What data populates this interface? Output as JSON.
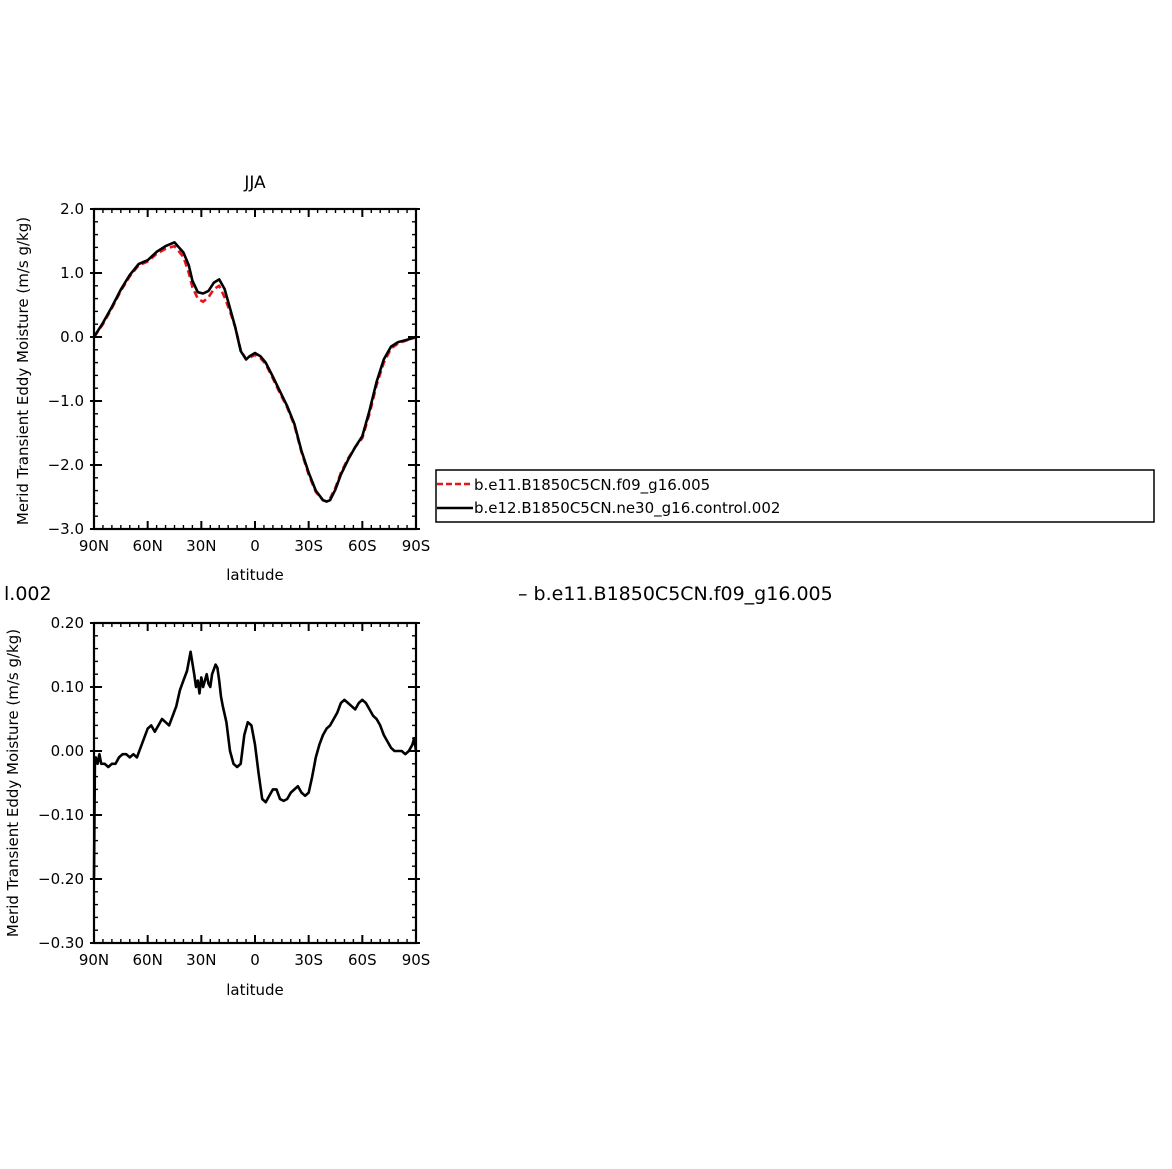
{
  "figure": {
    "top_panel_title": "JJA",
    "bottom_panel_title_left": "l.002",
    "bottom_panel_title_right": "– b.e11.B1850C5CN.f09_g16.005",
    "colors": {
      "case1": "#e8141c",
      "case2": "#000000",
      "frame": "#000000"
    }
  },
  "chart_data": [
    {
      "type": "line",
      "title": "JJA",
      "xlabel": "latitude",
      "ylabel": "Merid Transient Eddy Moisture (m/s g/kg)",
      "xlim": [
        90,
        -90
      ],
      "ylim": [
        -3.0,
        2.0
      ],
      "x_ticks": [
        90,
        60,
        30,
        0,
        -30,
        -60,
        -90
      ],
      "x_tick_labels": [
        "90N",
        "60N",
        "30N",
        "0",
        "30S",
        "60S",
        "90S"
      ],
      "y_ticks": [
        2.0,
        1.0,
        0.0,
        -1.0,
        -2.0,
        -3.0
      ],
      "y_tick_labels": [
        "2.0",
        "1.0",
        "0.0",
        "−1.0",
        "−2.0",
        "−3.0"
      ],
      "grid": false,
      "legend_position": "right",
      "series": [
        {
          "name": "b.e11.B1850C5CN.f09_g16.005",
          "color": "#e8141c",
          "dash": "dashed",
          "x": [
            90,
            85,
            80,
            75,
            70,
            65,
            60,
            55,
            50,
            45,
            40,
            37,
            35,
            32,
            29,
            26,
            23,
            20,
            17,
            14,
            11,
            8,
            5,
            3,
            0,
            -3,
            -6,
            -10,
            -14,
            -18,
            -22,
            -26,
            -30,
            -34,
            -38,
            -40,
            -42,
            -45,
            -48,
            -52,
            -56,
            -60,
            -64,
            -68,
            -72,
            -76,
            -80,
            -84,
            -88,
            -90
          ],
          "y": [
            0.0,
            0.2,
            0.45,
            0.72,
            0.95,
            1.12,
            1.18,
            1.3,
            1.38,
            1.42,
            1.25,
            1.0,
            0.78,
            0.6,
            0.55,
            0.62,
            0.75,
            0.8,
            0.62,
            0.4,
            0.15,
            -0.2,
            -0.35,
            -0.32,
            -0.28,
            -0.33,
            -0.42,
            -0.65,
            -0.88,
            -1.1,
            -1.38,
            -1.8,
            -2.15,
            -2.42,
            -2.55,
            -2.57,
            -2.52,
            -2.35,
            -2.12,
            -1.9,
            -1.72,
            -1.58,
            -1.2,
            -0.75,
            -0.4,
            -0.18,
            -0.1,
            -0.06,
            -0.02,
            0.0
          ]
        },
        {
          "name": "b.e12.B1850C5CN.ne30_g16.control.002",
          "color": "#000000",
          "dash": "solid",
          "x": [
            90,
            85,
            80,
            75,
            70,
            65,
            60,
            55,
            50,
            45,
            40,
            37,
            35,
            32,
            29,
            26,
            23,
            20,
            17,
            14,
            11,
            8,
            5,
            3,
            0,
            -3,
            -6,
            -10,
            -14,
            -18,
            -22,
            -26,
            -30,
            -34,
            -38,
            -40,
            -42,
            -45,
            -48,
            -52,
            -56,
            -60,
            -64,
            -68,
            -72,
            -76,
            -80,
            -84,
            -88,
            -90
          ],
          "y": [
            0.0,
            0.22,
            0.47,
            0.74,
            0.97,
            1.14,
            1.2,
            1.33,
            1.42,
            1.48,
            1.32,
            1.12,
            0.88,
            0.7,
            0.68,
            0.72,
            0.85,
            0.9,
            0.75,
            0.45,
            0.15,
            -0.22,
            -0.35,
            -0.3,
            -0.25,
            -0.3,
            -0.4,
            -0.62,
            -0.85,
            -1.08,
            -1.36,
            -1.78,
            -2.12,
            -2.4,
            -2.55,
            -2.57,
            -2.55,
            -2.38,
            -2.15,
            -1.92,
            -1.72,
            -1.55,
            -1.15,
            -0.7,
            -0.35,
            -0.15,
            -0.08,
            -0.05,
            -0.02,
            0.0
          ]
        }
      ]
    },
    {
      "type": "line",
      "title": "",
      "xlabel": "latitude",
      "ylabel": "Merid Transient Eddy Moisture (m/s g/kg)",
      "xlim": [
        90,
        -90
      ],
      "ylim": [
        -0.3,
        0.2
      ],
      "x_ticks": [
        90,
        60,
        30,
        0,
        -30,
        -60,
        -90
      ],
      "x_tick_labels": [
        "90N",
        "60N",
        "30N",
        "0",
        "30S",
        "60S",
        "90S"
      ],
      "y_ticks": [
        0.2,
        0.1,
        0.0,
        -0.1,
        -0.2,
        -0.3
      ],
      "y_tick_labels": [
        "0.20",
        "0.10",
        "0.00",
        "−0.10",
        "−0.20",
        "−0.30"
      ],
      "grid": false,
      "series": [
        {
          "color": "#000000",
          "dash": "solid",
          "x": [
            90,
            89.5,
            89,
            88,
            87,
            86,
            85,
            84,
            82,
            80,
            78,
            76,
            74,
            72,
            70,
            68,
            66,
            64,
            62,
            60,
            58,
            56,
            54,
            52,
            50,
            48,
            46,
            44,
            42,
            40,
            38,
            36,
            34,
            33,
            32,
            31,
            30,
            29,
            28,
            27,
            26,
            25,
            24,
            22,
            21,
            20,
            19,
            18,
            16,
            14,
            12,
            10,
            8,
            6,
            4,
            2,
            0,
            -2,
            -4,
            -6,
            -8,
            -10,
            -12,
            -14,
            -16,
            -18,
            -20,
            -22,
            -24,
            -26,
            -28,
            -30,
            -32,
            -34,
            -36,
            -38,
            -40,
            -42,
            -44,
            -46,
            -48,
            -50,
            -52,
            -54,
            -56,
            -58,
            -60,
            -62,
            -64,
            -66,
            -68,
            -70,
            -72,
            -74,
            -76,
            -78,
            -80,
            -82,
            -84,
            -86,
            -88,
            -89,
            -90
          ],
          "y": [
            -0.2,
            -0.02,
            -0.01,
            -0.02,
            -0.005,
            -0.02,
            -0.02,
            -0.02,
            -0.025,
            -0.02,
            -0.02,
            -0.01,
            -0.005,
            -0.005,
            -0.01,
            -0.005,
            -0.01,
            0.005,
            0.02,
            0.035,
            0.04,
            0.03,
            0.04,
            0.05,
            0.045,
            0.04,
            0.055,
            0.07,
            0.095,
            0.11,
            0.125,
            0.155,
            0.12,
            0.1,
            0.11,
            0.09,
            0.115,
            0.1,
            0.11,
            0.12,
            0.105,
            0.1,
            0.12,
            0.135,
            0.13,
            0.11,
            0.085,
            0.07,
            0.045,
            0.0,
            -0.02,
            -0.025,
            -0.02,
            0.025,
            0.045,
            0.04,
            0.01,
            -0.035,
            -0.075,
            -0.08,
            -0.07,
            -0.06,
            -0.06,
            -0.075,
            -0.078,
            -0.075,
            -0.065,
            -0.06,
            -0.055,
            -0.065,
            -0.07,
            -0.065,
            -0.04,
            -0.01,
            0.01,
            0.025,
            0.035,
            0.04,
            0.05,
            0.06,
            0.075,
            0.08,
            0.075,
            0.07,
            0.065,
            0.075,
            0.08,
            0.075,
            0.065,
            0.055,
            0.05,
            0.04,
            0.025,
            0.015,
            0.005,
            0.0,
            0.0,
            0.0,
            -0.005,
            0.0,
            0.01,
            0.02,
            0.0
          ]
        }
      ]
    }
  ]
}
